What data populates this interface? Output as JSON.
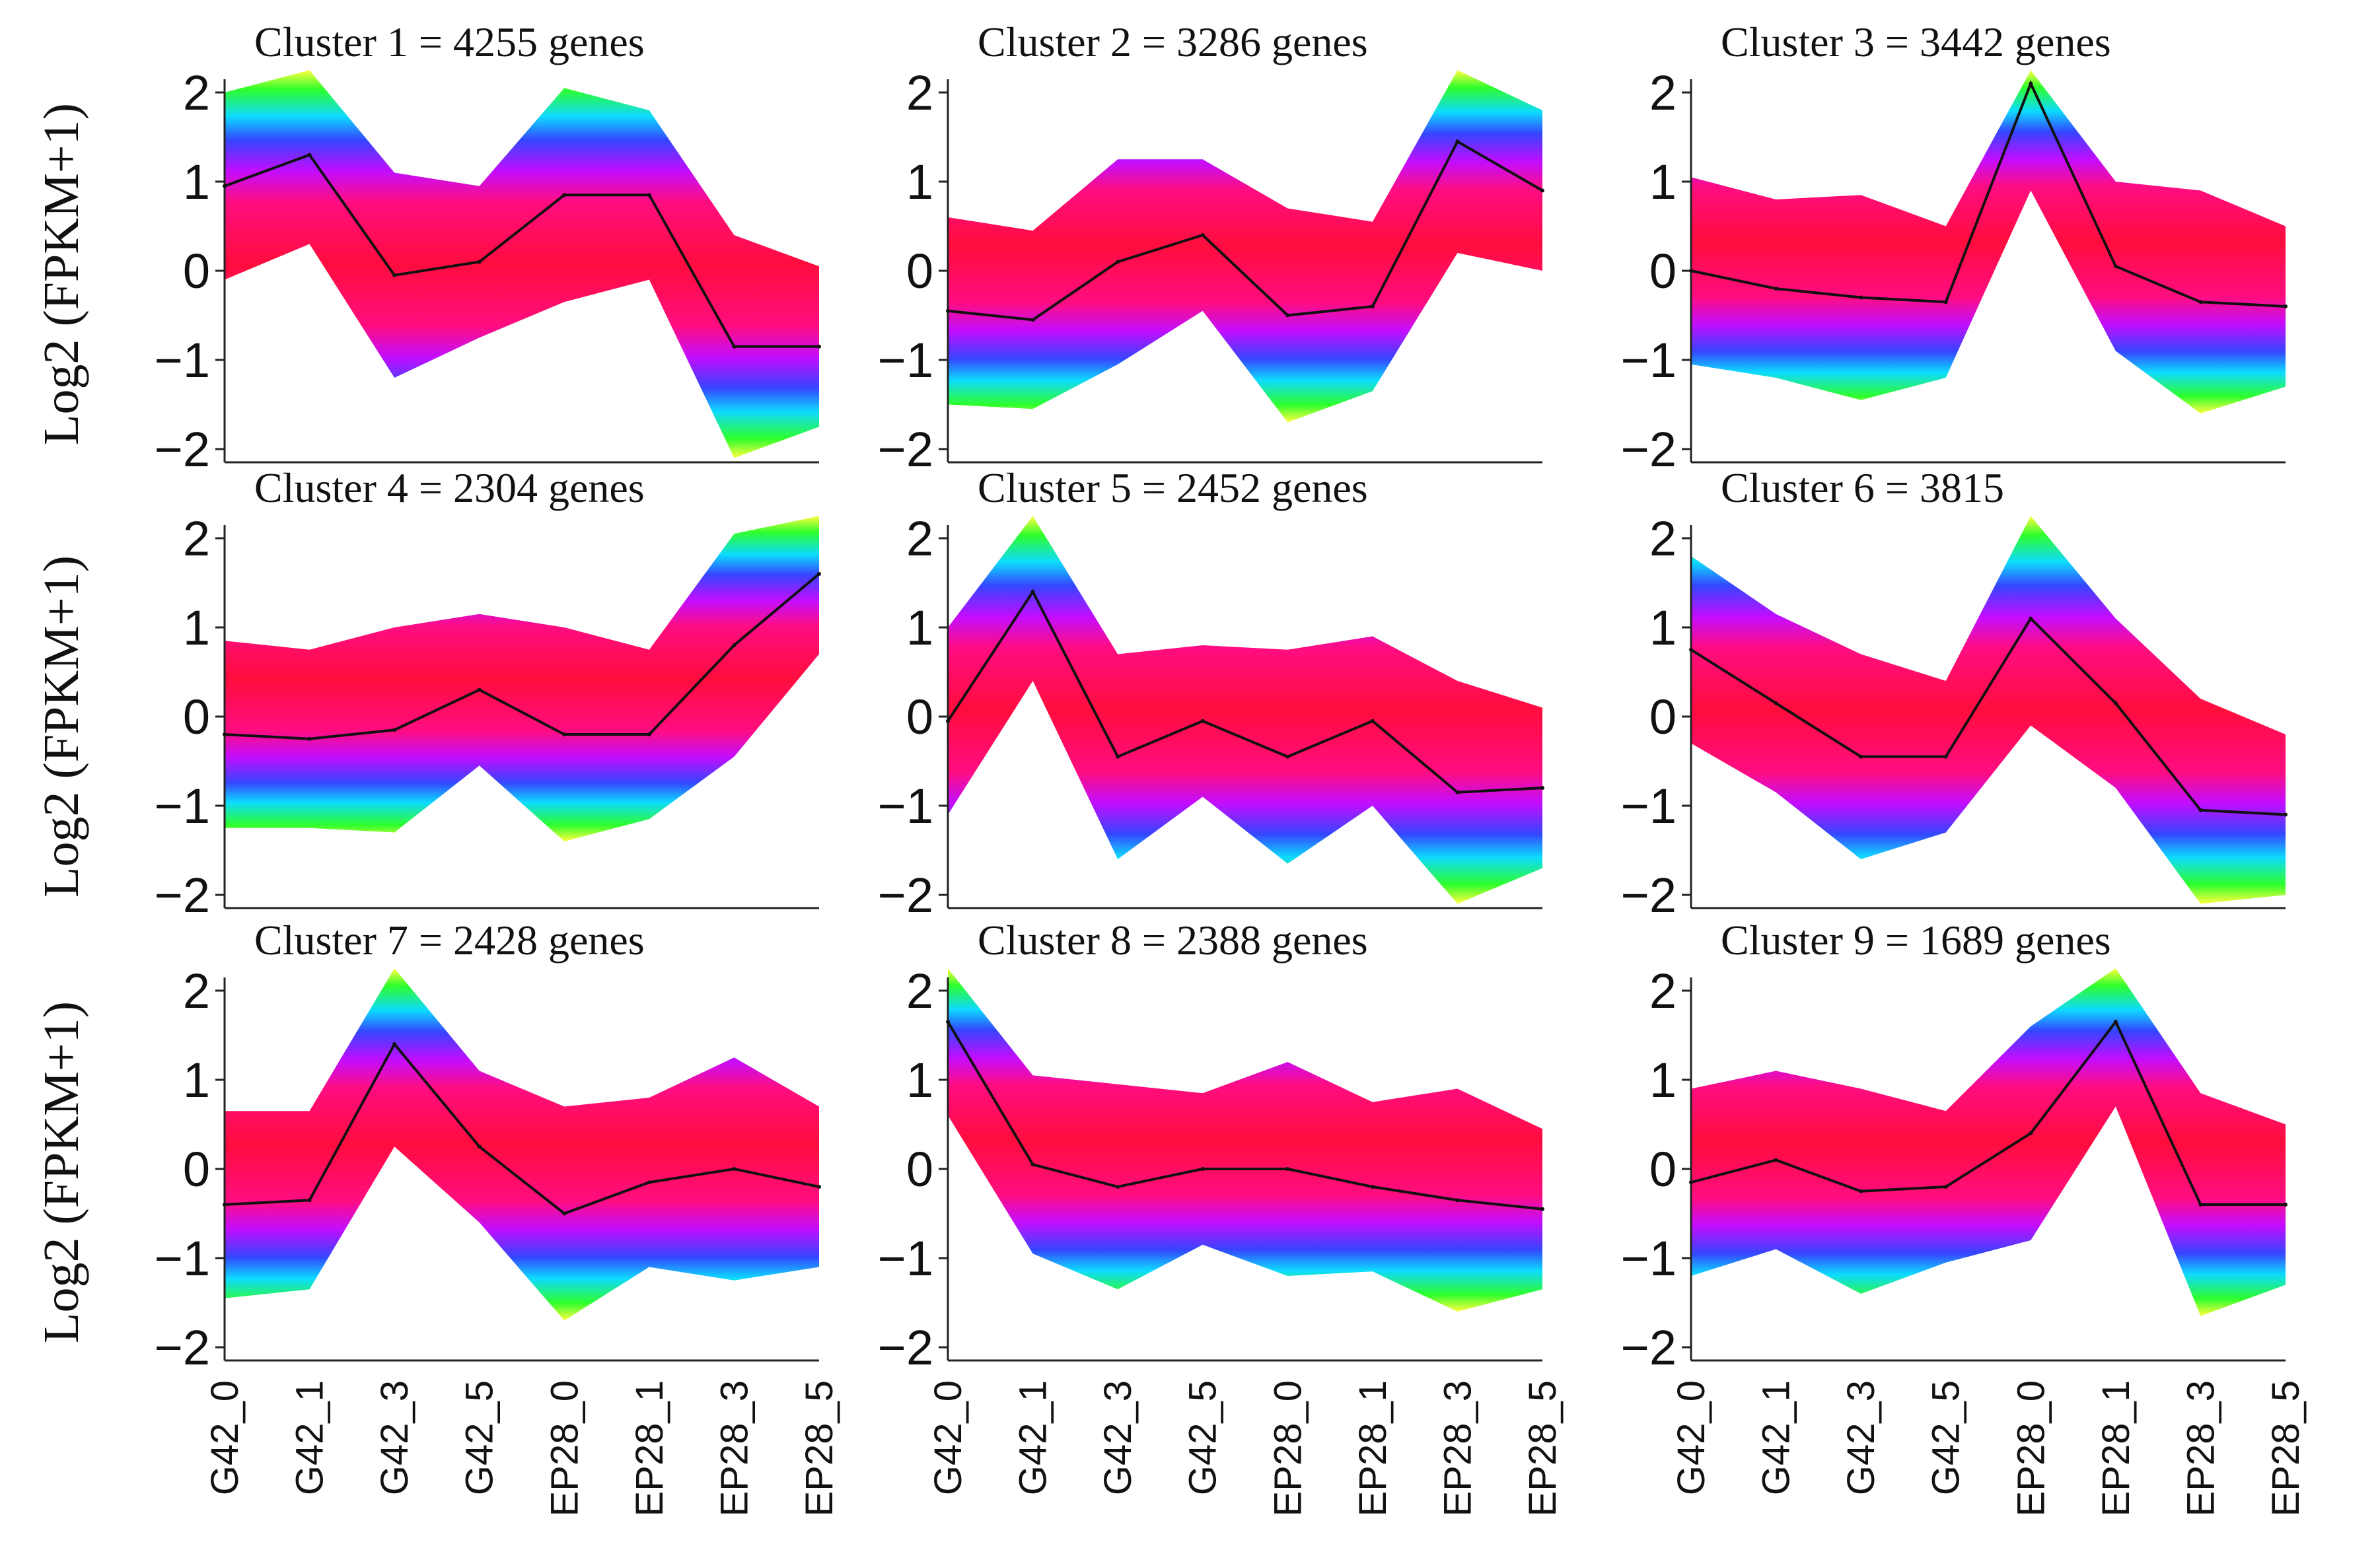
{
  "chart_data": {
    "type": "line",
    "figure_ylabel": "Log2 (FPKM+1)",
    "x": [
      "G42_0",
      "G42_1",
      "G42_3",
      "G42_5",
      "EP28_0",
      "EP28_1",
      "EP28_3",
      "EP28_5"
    ],
    "yticks": [
      "2",
      "1",
      "0",
      "−1",
      "−2"
    ],
    "ylim": [
      -2,
      2
    ],
    "panels": [
      {
        "title": "Cluster 1 = 4255 genes",
        "centroid": [
          0.95,
          1.3,
          -0.05,
          0.1,
          0.85,
          0.85,
          -0.85,
          -0.85
        ]
      },
      {
        "title": "Cluster 2 = 3286 genes",
        "centroid": [
          -0.45,
          -0.55,
          0.1,
          0.4,
          -0.5,
          -0.4,
          1.45,
          0.9
        ]
      },
      {
        "title": "Cluster 3 = 3442 genes",
        "centroid": [
          0.0,
          -0.2,
          -0.3,
          -0.35,
          2.1,
          0.05,
          -0.35,
          -0.4
        ]
      },
      {
        "title": "Cluster 4 = 2304 genes",
        "centroid": [
          -0.2,
          -0.25,
          -0.15,
          0.3,
          -0.2,
          -0.2,
          0.8,
          1.6
        ]
      },
      {
        "title": "Cluster 5 = 2452 genes",
        "centroid": [
          -0.05,
          1.4,
          -0.45,
          -0.05,
          -0.45,
          -0.05,
          -0.85,
          -0.8
        ]
      },
      {
        "title": "Cluster 6 = 3815",
        "centroid": [
          0.75,
          0.15,
          -0.45,
          -0.45,
          1.1,
          0.15,
          -1.05,
          -1.1
        ]
      },
      {
        "title": "Cluster 7 = 2428 genes",
        "centroid": [
          -0.4,
          -0.35,
          1.4,
          0.25,
          -0.5,
          -0.15,
          0.0,
          -0.2
        ]
      },
      {
        "title": "Cluster 8 = 2388 genes",
        "centroid": [
          1.65,
          0.05,
          -0.2,
          0.0,
          0.0,
          -0.2,
          -0.35,
          -0.45
        ]
      },
      {
        "title": "Cluster 9 = 1689 genes",
        "centroid": [
          -0.15,
          0.1,
          -0.25,
          -0.2,
          0.4,
          1.65,
          -0.4,
          -0.4
        ]
      }
    ]
  }
}
